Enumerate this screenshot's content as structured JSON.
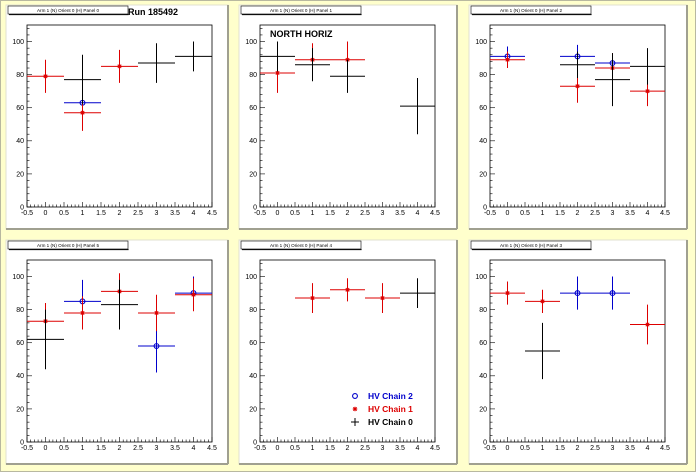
{
  "canvas": {
    "run_label": "Run 185492",
    "region_label": "NORTH HORIZ",
    "legend": [
      {
        "label": "HV Chain 2",
        "color": "#0000cc",
        "marker": "circle"
      },
      {
        "label": "HV Chain 1",
        "color": "#dd0000",
        "marker": "star"
      },
      {
        "label": "HV Chain 0",
        "color": "#000000",
        "marker": "cross"
      }
    ]
  },
  "chart_data": [
    {
      "type": "scatter",
      "title": "Arm 1 (N) Orient 0 (H) Panel 0",
      "xlim": [
        -0.5,
        4.5
      ],
      "ylim": [
        0,
        110
      ],
      "xticks": [
        "-0.5",
        "0",
        "0.5",
        "1",
        "1.5",
        "2",
        "2.5",
        "3",
        "3.5",
        "4",
        "4.5"
      ],
      "yticks": [
        "0",
        "20",
        "40",
        "60",
        "80",
        "100"
      ],
      "series": [
        {
          "name": "HV Chain 2",
          "color": "#0000cc",
          "marker": "circle",
          "points": [
            {
              "x": 1,
              "y": 63,
              "ex": 0.5,
              "ey": 6
            }
          ]
        },
        {
          "name": "HV Chain 1",
          "color": "#dd0000",
          "marker": "star",
          "points": [
            {
              "x": 0,
              "y": 79,
              "ex": 0.5,
              "ey": 10
            },
            {
              "x": 1,
              "y": 57,
              "ex": 0.5,
              "ey": 11
            },
            {
              "x": 2,
              "y": 85,
              "ex": 0.5,
              "ey": 10
            }
          ]
        },
        {
          "name": "HV Chain 0",
          "color": "#000000",
          "marker": "cross",
          "points": [
            {
              "x": 1,
              "y": 77,
              "ex": 0.5,
              "ey": 15
            },
            {
              "x": 3,
              "y": 87,
              "ex": 0.5,
              "ey": 12
            },
            {
              "x": 4,
              "y": 91,
              "ex": 0.5,
              "ey": 9
            }
          ]
        }
      ]
    },
    {
      "type": "scatter",
      "title": "Arm 1 (N) Orient 0 (H) Panel 1",
      "xlim": [
        -0.5,
        4.5
      ],
      "ylim": [
        0,
        110
      ],
      "xticks": [
        "-0.5",
        "0",
        "0.5",
        "1",
        "1.5",
        "2",
        "2.5",
        "3",
        "3.5",
        "4",
        "4.5"
      ],
      "yticks": [
        "0",
        "20",
        "40",
        "60",
        "80",
        "100"
      ],
      "series": [
        {
          "name": "HV Chain 2",
          "color": "#0000cc",
          "marker": "circle",
          "points": []
        },
        {
          "name": "HV Chain 1",
          "color": "#dd0000",
          "marker": "star",
          "points": [
            {
              "x": 0,
              "y": 81,
              "ex": 0.5,
              "ey": 12
            },
            {
              "x": 1,
              "y": 89,
              "ex": 0.5,
              "ey": 10
            },
            {
              "x": 2,
              "y": 89,
              "ex": 0.5,
              "ey": 11
            }
          ]
        },
        {
          "name": "HV Chain 0",
          "color": "#000000",
          "marker": "cross",
          "points": [
            {
              "x": 0,
              "y": 91,
              "ex": 0.5,
              "ey": 9
            },
            {
              "x": 1,
              "y": 86,
              "ex": 0.5,
              "ey": 10
            },
            {
              "x": 2,
              "y": 79,
              "ex": 0.5,
              "ey": 10
            },
            {
              "x": 4,
              "y": 61,
              "ex": 0.5,
              "ey": 17
            }
          ]
        }
      ]
    },
    {
      "type": "scatter",
      "title": "Arm 1 (N) Orient 0 (H) Panel 2",
      "xlim": [
        -0.5,
        4.5
      ],
      "ylim": [
        0,
        110
      ],
      "xticks": [
        "-0.5",
        "0",
        "0.5",
        "1",
        "1.5",
        "2",
        "2.5",
        "3",
        "3.5",
        "4",
        "4.5"
      ],
      "yticks": [
        "0",
        "20",
        "40",
        "60",
        "80",
        "100"
      ],
      "series": [
        {
          "name": "HV Chain 2",
          "color": "#0000cc",
          "marker": "circle",
          "points": [
            {
              "x": 0,
              "y": 91,
              "ex": 0.5,
              "ey": 6
            },
            {
              "x": 2,
              "y": 91,
              "ex": 0.5,
              "ey": 7
            },
            {
              "x": 3,
              "y": 87,
              "ex": 0.5,
              "ey": 6
            }
          ]
        },
        {
          "name": "HV Chain 1",
          "color": "#dd0000",
          "marker": "star",
          "points": [
            {
              "x": 0,
              "y": 89,
              "ex": 0.5,
              "ey": 5
            },
            {
              "x": 2,
              "y": 73,
              "ex": 0.5,
              "ey": 10
            },
            {
              "x": 3,
              "y": 84,
              "ex": 0.5,
              "ey": 9
            },
            {
              "x": 4,
              "y": 70,
              "ex": 0.5,
              "ey": 9
            }
          ]
        },
        {
          "name": "HV Chain 0",
          "color": "#000000",
          "marker": "cross",
          "points": [
            {
              "x": 2,
              "y": 86,
              "ex": 0.5,
              "ey": 8
            },
            {
              "x": 3,
              "y": 77,
              "ex": 0.5,
              "ey": 16
            },
            {
              "x": 4,
              "y": 85,
              "ex": 0.5,
              "ey": 11
            }
          ]
        }
      ]
    },
    {
      "type": "scatter",
      "title": "Arm 1 (N) Orient 0 (H) Panel 5",
      "xlim": [
        -0.5,
        4.5
      ],
      "ylim": [
        0,
        110
      ],
      "xticks": [
        "-0.5",
        "0",
        "0.5",
        "1",
        "1.5",
        "2",
        "2.5",
        "3",
        "3.5",
        "4",
        "4.5"
      ],
      "yticks": [
        "0",
        "20",
        "40",
        "60",
        "80",
        "100"
      ],
      "series": [
        {
          "name": "HV Chain 2",
          "color": "#0000cc",
          "marker": "circle",
          "points": [
            {
              "x": 1,
              "y": 85,
              "ex": 0.5,
              "ey": 13
            },
            {
              "x": 3,
              "y": 58,
              "ex": 0.5,
              "ey": 16
            },
            {
              "x": 4,
              "y": 90,
              "ex": 0.5,
              "ey": 10
            }
          ]
        },
        {
          "name": "HV Chain 1",
          "color": "#dd0000",
          "marker": "star",
          "points": [
            {
              "x": 0,
              "y": 73,
              "ex": 0.5,
              "ey": 11
            },
            {
              "x": 1,
              "y": 78,
              "ex": 0.5,
              "ey": 10
            },
            {
              "x": 2,
              "y": 91,
              "ex": 0.5,
              "ey": 11
            },
            {
              "x": 3,
              "y": 78,
              "ex": 0.5,
              "ey": 11
            },
            {
              "x": 4,
              "y": 89,
              "ex": 0.5,
              "ey": 10
            }
          ]
        },
        {
          "name": "HV Chain 0",
          "color": "#000000",
          "marker": "cross",
          "points": [
            {
              "x": 0,
              "y": 62,
              "ex": 0.5,
              "ey": 18
            },
            {
              "x": 2,
              "y": 83,
              "ex": 0.5,
              "ey": 15
            }
          ]
        }
      ]
    },
    {
      "type": "scatter",
      "title": "Arm 1 (N) Orient 0 (H) Panel 4",
      "xlim": [
        -0.5,
        4.5
      ],
      "ylim": [
        0,
        110
      ],
      "xticks": [
        "-0.5",
        "0",
        "0.5",
        "1",
        "1.5",
        "2",
        "2.5",
        "3",
        "3.5",
        "4",
        "4.5"
      ],
      "yticks": [
        "0",
        "20",
        "40",
        "60",
        "80",
        "100"
      ],
      "series": [
        {
          "name": "HV Chain 2",
          "color": "#0000cc",
          "marker": "circle",
          "points": []
        },
        {
          "name": "HV Chain 1",
          "color": "#dd0000",
          "marker": "star",
          "points": [
            {
              "x": 1,
              "y": 87,
              "ex": 0.5,
              "ey": 9
            },
            {
              "x": 2,
              "y": 92,
              "ex": 0.5,
              "ey": 7
            },
            {
              "x": 3,
              "y": 87,
              "ex": 0.5,
              "ey": 9
            }
          ]
        },
        {
          "name": "HV Chain 0",
          "color": "#000000",
          "marker": "cross",
          "points": [
            {
              "x": 4,
              "y": 90,
              "ex": 0.5,
              "ey": 9
            }
          ]
        }
      ]
    },
    {
      "type": "scatter",
      "title": "Arm 1 (N) Orient 0 (H) Panel 3",
      "xlim": [
        -0.5,
        4.5
      ],
      "ylim": [
        0,
        110
      ],
      "xticks": [
        "-0.5",
        "0",
        "0.5",
        "1",
        "1.5",
        "2",
        "2.5",
        "3",
        "3.5",
        "4",
        "4.5"
      ],
      "yticks": [
        "0",
        "20",
        "40",
        "60",
        "80",
        "100"
      ],
      "series": [
        {
          "name": "HV Chain 2",
          "color": "#0000cc",
          "marker": "circle",
          "points": [
            {
              "x": 2,
              "y": 90,
              "ex": 0.5,
              "ey": 10
            },
            {
              "x": 3,
              "y": 90,
              "ex": 0.5,
              "ey": 10
            }
          ]
        },
        {
          "name": "HV Chain 1",
          "color": "#dd0000",
          "marker": "star",
          "points": [
            {
              "x": 0,
              "y": 90,
              "ex": 0.5,
              "ey": 7
            },
            {
              "x": 1,
              "y": 85,
              "ex": 0.5,
              "ey": 7
            },
            {
              "x": 4,
              "y": 71,
              "ex": 0.5,
              "ey": 12
            }
          ]
        },
        {
          "name": "HV Chain 0",
          "color": "#000000",
          "marker": "cross",
          "points": [
            {
              "x": 1,
              "y": 55,
              "ex": 0.5,
              "ey": 17
            }
          ]
        }
      ]
    }
  ]
}
